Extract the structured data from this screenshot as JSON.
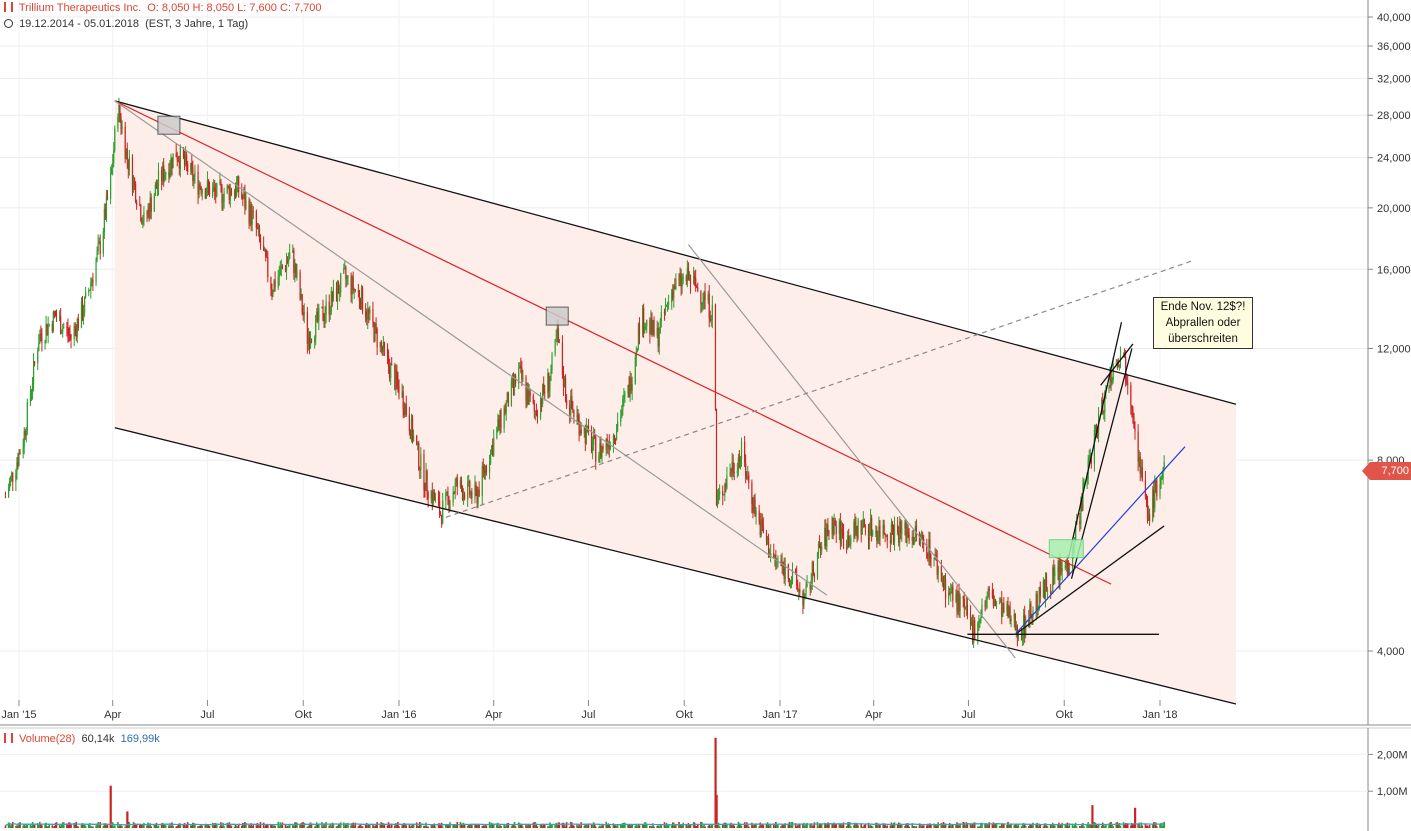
{
  "header": {
    "symbol": "Trillium Therapeutics Inc.",
    "ohlc": "O: 8,050  H: 8,050  L: 7,600  C: 7,700",
    "range": "19.12.2014 - 05.01.2018",
    "params": "(EST, 3 Jahre, 1 Tag)"
  },
  "price_tag": "7,700",
  "annotation": [
    "Ende Nov. 12$?!",
    "Abprallen oder",
    "überschreiten"
  ],
  "volume_header": {
    "label": "Volume(28)",
    "v1": "60,14k",
    "v2": "169,99k"
  },
  "colors": {
    "up": "#2e9e2e",
    "down": "#cc2222",
    "channel_fill": "#fdeeea",
    "trend_red": "#e02020",
    "trend_blue": "#2040e0",
    "gray_line": "#9a9a9a"
  },
  "chart_data": {
    "type": "candlestick",
    "y_scale": "log",
    "ylim": [
      3.3,
      41
    ],
    "y_ticks": [
      {
        "v": 40,
        "label": "40,000"
      },
      {
        "v": 36,
        "label": "36,000"
      },
      {
        "v": 32,
        "label": "32,000"
      },
      {
        "v": 28,
        "label": "28,000"
      },
      {
        "v": 24,
        "label": "24,000"
      },
      {
        "v": 20,
        "label": "20,000"
      },
      {
        "v": 16,
        "label": "16,000"
      },
      {
        "v": 12,
        "label": "12,000"
      },
      {
        "v": 8,
        "label": "8,000"
      },
      {
        "v": 4,
        "label": "4,000"
      }
    ],
    "x_ticks": [
      {
        "d": "2015-01-01",
        "label": "Jan '15"
      },
      {
        "d": "2015-04-01",
        "label": "Apr"
      },
      {
        "d": "2015-07-01",
        "label": "Jul"
      },
      {
        "d": "2015-10-01",
        "label": "Okt"
      },
      {
        "d": "2016-01-01",
        "label": "Jan '16"
      },
      {
        "d": "2016-04-01",
        "label": "Apr"
      },
      {
        "d": "2016-07-01",
        "label": "Jul"
      },
      {
        "d": "2016-10-01",
        "label": "Okt"
      },
      {
        "d": "2017-01-01",
        "label": "Jan '17"
      },
      {
        "d": "2017-04-01",
        "label": "Apr"
      },
      {
        "d": "2017-07-01",
        "label": "Jul"
      },
      {
        "d": "2017-10-01",
        "label": "Okt"
      },
      {
        "d": "2018-01-01",
        "label": "Jan '18"
      }
    ],
    "price_path": [
      [
        "2014-12-19",
        7.0
      ],
      [
        "2015-01-05",
        8.6
      ],
      [
        "2015-01-20",
        12.5
      ],
      [
        "2015-02-05",
        13.5
      ],
      [
        "2015-02-20",
        12.5
      ],
      [
        "2015-03-05",
        14.0
      ],
      [
        "2015-03-20",
        17.5
      ],
      [
        "2015-03-30",
        22.0
      ],
      [
        "2015-04-06",
        29.0
      ],
      [
        "2015-04-15",
        24.0
      ],
      [
        "2015-05-01",
        19.0
      ],
      [
        "2015-05-15",
        22.0
      ],
      [
        "2015-06-01",
        24.5
      ],
      [
        "2015-06-20",
        22.0
      ],
      [
        "2015-07-10",
        21.0
      ],
      [
        "2015-07-30",
        21.5
      ],
      [
        "2015-08-15",
        19.0
      ],
      [
        "2015-09-01",
        15.0
      ],
      [
        "2015-09-20",
        17.0
      ],
      [
        "2015-10-05",
        12.5
      ],
      [
        "2015-10-25",
        14.0
      ],
      [
        "2015-11-10",
        15.5
      ],
      [
        "2015-11-25",
        14.5
      ],
      [
        "2015-12-15",
        12.0
      ],
      [
        "2016-01-05",
        10.0
      ],
      [
        "2016-01-25",
        7.5
      ],
      [
        "2016-02-10",
        6.6
      ],
      [
        "2016-02-25",
        7.3
      ],
      [
        "2016-03-15",
        7.0
      ],
      [
        "2016-04-05",
        9.0
      ],
      [
        "2016-04-25",
        11.0
      ],
      [
        "2016-05-10",
        9.5
      ],
      [
        "2016-05-25",
        10.8
      ],
      [
        "2016-06-01",
        12.5
      ],
      [
        "2016-06-10",
        10.0
      ],
      [
        "2016-06-25",
        9.0
      ],
      [
        "2016-07-10",
        8.2
      ],
      [
        "2016-07-25",
        8.8
      ],
      [
        "2016-08-10",
        10.5
      ],
      [
        "2016-08-20",
        13.5
      ],
      [
        "2016-09-05",
        12.5
      ],
      [
        "2016-09-20",
        15.0
      ],
      [
        "2016-10-05",
        15.5
      ],
      [
        "2016-10-20",
        14.5
      ],
      [
        "2016-10-30",
        13.5
      ],
      [
        "2016-11-01",
        6.8
      ],
      [
        "2016-11-15",
        7.8
      ],
      [
        "2016-11-25",
        8.2
      ],
      [
        "2016-12-10",
        6.5
      ],
      [
        "2016-12-25",
        5.6
      ],
      [
        "2017-01-10",
        5.3
      ],
      [
        "2017-01-25",
        4.8
      ],
      [
        "2017-02-05",
        5.6
      ],
      [
        "2017-02-20",
        6.4
      ],
      [
        "2017-03-05",
        6.0
      ],
      [
        "2017-03-20",
        6.3
      ],
      [
        "2017-04-05",
        6.2
      ],
      [
        "2017-04-25",
        6.2
      ],
      [
        "2017-05-10",
        6.1
      ],
      [
        "2017-05-25",
        5.8
      ],
      [
        "2017-06-10",
        5.0
      ],
      [
        "2017-06-25",
        4.7
      ],
      [
        "2017-07-05",
        4.3
      ],
      [
        "2017-07-20",
        4.9
      ],
      [
        "2017-08-05",
        4.6
      ],
      [
        "2017-08-20",
        4.3
      ],
      [
        "2017-09-05",
        4.8
      ],
      [
        "2017-09-20",
        5.2
      ],
      [
        "2017-10-05",
        5.5
      ],
      [
        "2017-10-15",
        6.5
      ],
      [
        "2017-10-25",
        8.0
      ],
      [
        "2017-11-05",
        9.5
      ],
      [
        "2017-11-15",
        11.0
      ],
      [
        "2017-11-25",
        12.0
      ],
      [
        "2017-12-05",
        10.0
      ],
      [
        "2017-12-12",
        8.0
      ],
      [
        "2017-12-20",
        6.5
      ],
      [
        "2017-12-28",
        7.2
      ],
      [
        "2018-01-05",
        7.7
      ]
    ],
    "volume_ticks": [
      {
        "v": 2.0,
        "label": "2,00M"
      },
      {
        "v": 1.0,
        "label": "1,00M"
      }
    ],
    "volume_ylim": [
      0,
      2.5
    ],
    "volume_spikes": [
      [
        "2015-03-30",
        1.15
      ],
      [
        "2015-04-15",
        0.45
      ],
      [
        "2016-10-31",
        2.45
      ],
      [
        "2016-11-01",
        0.9
      ],
      [
        "2017-10-28",
        0.62
      ],
      [
        "2017-12-08",
        0.55
      ]
    ],
    "volume_baseline": 0.12,
    "lines": [
      {
        "name": "channel-top",
        "color": "#111111",
        "dash": false,
        "p": [
          [
            "2015-04-03",
            29.5
          ],
          [
            "2018-03-15",
            9.8
          ]
        ]
      },
      {
        "name": "channel-bottom",
        "color": "#111111",
        "dash": false,
        "p": [
          [
            "2015-04-03",
            9.0
          ],
          [
            "2018-03-15",
            3.3
          ]
        ]
      },
      {
        "name": "red-trend",
        "color": "#e02020",
        "dash": false,
        "p": [
          [
            "2015-04-03",
            29.5
          ],
          [
            "2017-11-15",
            5.1
          ]
        ]
      },
      {
        "name": "gray-1",
        "color": "#9a9a9a",
        "dash": false,
        "p": [
          [
            "2015-04-03",
            29.5
          ],
          [
            "2017-02-15",
            4.9
          ]
        ]
      },
      {
        "name": "gray-2",
        "color": "#9a9a9a",
        "dash": false,
        "p": [
          [
            "2016-10-05",
            17.5
          ],
          [
            "2017-08-15",
            3.9
          ]
        ]
      },
      {
        "name": "gray-dashed",
        "color": "#8a8a8a",
        "dash": true,
        "p": [
          [
            "2016-02-15",
            6.5
          ],
          [
            "2018-02-01",
            16.5
          ]
        ]
      },
      {
        "name": "support-flat",
        "color": "#111111",
        "dash": false,
        "p": [
          [
            "2017-06-30",
            4.25
          ],
          [
            "2017-12-31",
            4.25
          ]
        ]
      },
      {
        "name": "support-rise",
        "color": "#111111",
        "dash": false,
        "p": [
          [
            "2017-08-15",
            4.25
          ],
          [
            "2018-01-05",
            6.3
          ]
        ]
      },
      {
        "name": "blue-trend",
        "color": "#2040e0",
        "dash": false,
        "p": [
          [
            "2017-08-15",
            4.25
          ],
          [
            "2018-01-25",
            8.4
          ]
        ]
      },
      {
        "name": "wedge-1",
        "color": "#111111",
        "dash": false,
        "p": [
          [
            "2017-10-05",
            5.6
          ],
          [
            "2017-11-25",
            13.2
          ]
        ]
      },
      {
        "name": "wedge-2",
        "color": "#111111",
        "dash": false,
        "p": [
          [
            "2017-10-08",
            5.2
          ],
          [
            "2017-12-05",
            12.0
          ]
        ]
      },
      {
        "name": "wedge-3",
        "color": "#111111",
        "dash": false,
        "p": [
          [
            "2017-11-05",
            10.5
          ],
          [
            "2017-12-06",
            12.2
          ]
        ]
      }
    ],
    "markers": [
      {
        "name": "box-gray-1",
        "color": "#cccccc",
        "d": "2015-05-25",
        "v": 27.0
      },
      {
        "name": "box-gray-2",
        "color": "#cccccc",
        "d": "2016-06-01",
        "v": 13.5
      },
      {
        "name": "box-green",
        "color": "#a8f0b0",
        "d": "2017-10-03",
        "v": 5.8
      }
    ]
  }
}
